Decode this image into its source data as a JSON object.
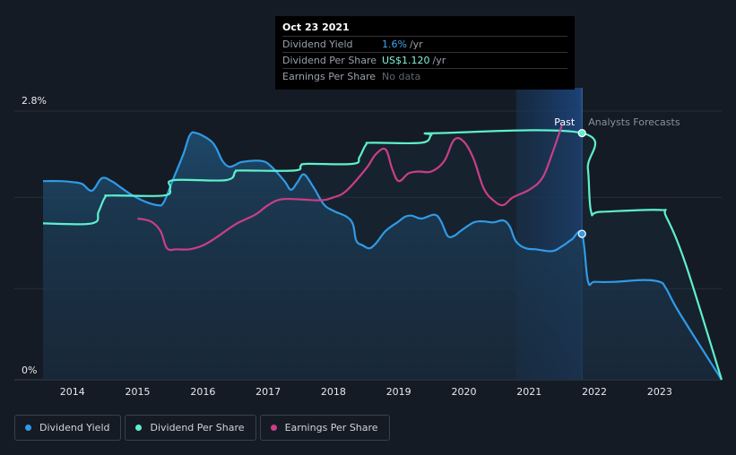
{
  "tooltip": {
    "date": "Oct 23 2021",
    "rows": [
      {
        "label": "Dividend Yield",
        "value": "1.6%",
        "unit": "/yr",
        "color": "#3ea8f2"
      },
      {
        "label": "Dividend Per Share",
        "value": "US$1.120",
        "unit": "/yr",
        "color": "#7ff5d8"
      },
      {
        "label": "Earnings Per Share",
        "value": "No data",
        "unit": "",
        "color": "#5f656d"
      }
    ]
  },
  "legend": [
    {
      "label": "Dividend Yield",
      "color": "#2f9be8"
    },
    {
      "label": "Dividend Per Share",
      "color": "#5ef0cc"
    },
    {
      "label": "Earnings Per Share",
      "color": "#c93f86"
    }
  ],
  "annotations": {
    "past": "Past",
    "forecast": "Analysts Forecasts"
  },
  "chart_data": {
    "type": "line",
    "y_tick_labels": [
      "2.8%",
      "0%"
    ],
    "ylim": [
      0,
      2.8
    ],
    "xlim": [
      2013.55,
      2023.95
    ],
    "x_tick_labels": [
      "2014",
      "2015",
      "2016",
      "2017",
      "2018",
      "2019",
      "2020",
      "2021",
      "2022",
      "2023"
    ],
    "past_until": 2021.81,
    "highlight_from": 2020.8,
    "series": [
      {
        "name": "Dividend Yield",
        "color": "#2f9be8",
        "points": [
          [
            2013.55,
            2.07
          ],
          [
            2013.8,
            2.07
          ],
          [
            2014.0,
            2.06
          ],
          [
            2014.15,
            2.04
          ],
          [
            2014.3,
            1.97
          ],
          [
            2014.45,
            2.1
          ],
          [
            2014.6,
            2.07
          ],
          [
            2014.75,
            2.0
          ],
          [
            2014.9,
            1.93
          ],
          [
            2015.1,
            1.86
          ],
          [
            2015.3,
            1.82
          ],
          [
            2015.4,
            1.85
          ],
          [
            2015.55,
            2.1
          ],
          [
            2015.7,
            2.35
          ],
          [
            2015.8,
            2.55
          ],
          [
            2015.9,
            2.57
          ],
          [
            2016.1,
            2.5
          ],
          [
            2016.2,
            2.42
          ],
          [
            2016.3,
            2.28
          ],
          [
            2016.4,
            2.22
          ],
          [
            2016.5,
            2.24
          ],
          [
            2016.6,
            2.27
          ],
          [
            2016.9,
            2.28
          ],
          [
            2017.05,
            2.22
          ],
          [
            2017.25,
            2.07
          ],
          [
            2017.35,
            1.98
          ],
          [
            2017.45,
            2.06
          ],
          [
            2017.55,
            2.14
          ],
          [
            2017.7,
            2.0
          ],
          [
            2017.85,
            1.83
          ],
          [
            2018.0,
            1.76
          ],
          [
            2018.2,
            1.7
          ],
          [
            2018.3,
            1.62
          ],
          [
            2018.35,
            1.45
          ],
          [
            2018.45,
            1.4
          ],
          [
            2018.55,
            1.37
          ],
          [
            2018.65,
            1.42
          ],
          [
            2018.8,
            1.55
          ],
          [
            2019.0,
            1.65
          ],
          [
            2019.1,
            1.7
          ],
          [
            2019.2,
            1.71
          ],
          [
            2019.35,
            1.68
          ],
          [
            2019.55,
            1.72
          ],
          [
            2019.65,
            1.65
          ],
          [
            2019.75,
            1.5
          ],
          [
            2019.85,
            1.5
          ],
          [
            2019.95,
            1.55
          ],
          [
            2020.15,
            1.64
          ],
          [
            2020.3,
            1.65
          ],
          [
            2020.45,
            1.64
          ],
          [
            2020.6,
            1.66
          ],
          [
            2020.7,
            1.6
          ],
          [
            2020.8,
            1.44
          ],
          [
            2020.95,
            1.37
          ],
          [
            2021.1,
            1.36
          ],
          [
            2021.35,
            1.34
          ],
          [
            2021.5,
            1.39
          ],
          [
            2021.65,
            1.46
          ],
          [
            2021.81,
            1.52
          ],
          [
            2021.9,
            1.03
          ],
          [
            2022.0,
            1.02
          ],
          [
            2022.3,
            1.02
          ],
          [
            2022.75,
            1.04
          ],
          [
            2023.0,
            1.02
          ],
          [
            2023.1,
            0.95
          ],
          [
            2023.3,
            0.7
          ],
          [
            2023.95,
            0.0
          ]
        ]
      },
      {
        "name": "Dividend Per Share",
        "color": "#5ef0cc",
        "points": [
          [
            2013.55,
            1.63
          ],
          [
            2014.3,
            1.63
          ],
          [
            2014.4,
            1.75
          ],
          [
            2014.5,
            1.9
          ],
          [
            2014.6,
            1.92
          ],
          [
            2015.4,
            1.92
          ],
          [
            2015.5,
            2.0
          ],
          [
            2015.55,
            2.08
          ],
          [
            2016.35,
            2.08
          ],
          [
            2016.5,
            2.17
          ],
          [
            2016.6,
            2.18
          ],
          [
            2017.4,
            2.18
          ],
          [
            2017.5,
            2.23
          ],
          [
            2017.6,
            2.25
          ],
          [
            2018.3,
            2.25
          ],
          [
            2018.4,
            2.32
          ],
          [
            2018.5,
            2.45
          ],
          [
            2018.6,
            2.47
          ],
          [
            2019.35,
            2.47
          ],
          [
            2019.5,
            2.55
          ],
          [
            2019.6,
            2.57
          ],
          [
            2021.81,
            2.57
          ],
          [
            2021.9,
            2.2
          ],
          [
            2021.95,
            1.75
          ],
          [
            2022.1,
            1.75
          ],
          [
            2023.0,
            1.77
          ],
          [
            2023.1,
            1.7
          ],
          [
            2023.4,
            1.2
          ],
          [
            2023.95,
            0.0
          ]
        ]
      },
      {
        "name": "Earnings Per Share",
        "color": "#c93f86",
        "points": [
          [
            2015.0,
            1.68
          ],
          [
            2015.2,
            1.65
          ],
          [
            2015.35,
            1.55
          ],
          [
            2015.45,
            1.37
          ],
          [
            2015.6,
            1.36
          ],
          [
            2015.8,
            1.36
          ],
          [
            2016.0,
            1.4
          ],
          [
            2016.2,
            1.48
          ],
          [
            2016.5,
            1.62
          ],
          [
            2016.8,
            1.72
          ],
          [
            2017.0,
            1.82
          ],
          [
            2017.2,
            1.88
          ],
          [
            2017.5,
            1.88
          ],
          [
            2017.8,
            1.87
          ],
          [
            2018.0,
            1.9
          ],
          [
            2018.2,
            1.97
          ],
          [
            2018.5,
            2.2
          ],
          [
            2018.65,
            2.35
          ],
          [
            2018.8,
            2.4
          ],
          [
            2018.9,
            2.2
          ],
          [
            2019.0,
            2.07
          ],
          [
            2019.15,
            2.15
          ],
          [
            2019.3,
            2.17
          ],
          [
            2019.5,
            2.17
          ],
          [
            2019.7,
            2.28
          ],
          [
            2019.85,
            2.5
          ],
          [
            2020.0,
            2.48
          ],
          [
            2020.15,
            2.3
          ],
          [
            2020.3,
            2.0
          ],
          [
            2020.45,
            1.87
          ],
          [
            2020.6,
            1.82
          ],
          [
            2020.75,
            1.9
          ],
          [
            2021.0,
            1.98
          ],
          [
            2021.2,
            2.1
          ],
          [
            2021.35,
            2.35
          ],
          [
            2021.5,
            2.65
          ]
        ]
      }
    ],
    "markers": [
      {
        "series": "Dividend Per Share",
        "x": 2021.81,
        "y": 2.57
      },
      {
        "series": "Dividend Yield",
        "x": 2021.81,
        "y": 1.52
      }
    ]
  }
}
